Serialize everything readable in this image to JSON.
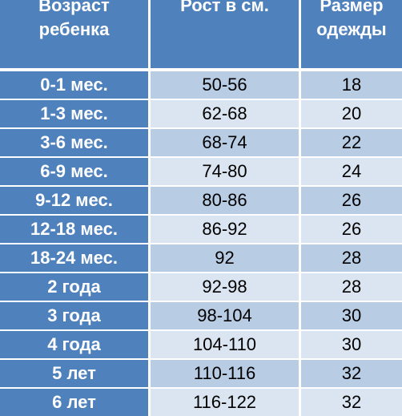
{
  "headers": [
    "Возраст\nребенка",
    "Рост в см.",
    "Размер\nодежды"
  ],
  "rows": [
    [
      "0-1 мес.",
      "50-56",
      "18"
    ],
    [
      "1-3 мес.",
      "62-68",
      "20"
    ],
    [
      "3-6 мес.",
      "68-74",
      "22"
    ],
    [
      "6-9 мес.",
      "74-80",
      "24"
    ],
    [
      "9-12 мес.",
      "80-86",
      "26"
    ],
    [
      "12-18 мес.",
      "86-92",
      "26"
    ],
    [
      "18-24 мес.",
      "92",
      "28"
    ],
    [
      "2 года",
      "92-98",
      "28"
    ],
    [
      "3 года",
      "98-104",
      "30"
    ],
    [
      "4 года",
      "104-110",
      "30"
    ],
    [
      "5 лет",
      "110-116",
      "32"
    ],
    [
      "6 лет",
      "116-122",
      "32"
    ]
  ],
  "colors": {
    "header_bg": "#4f81bd",
    "row_odd": "#b8cce4",
    "row_even": "#dbe5f1"
  }
}
